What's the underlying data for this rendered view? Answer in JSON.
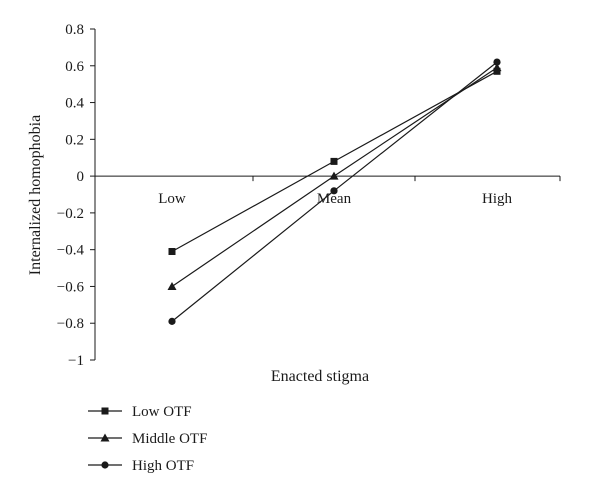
{
  "chart_data": {
    "type": "line",
    "title": "",
    "xlabel": "Enacted stigma",
    "ylabel": "Internalized homophobia",
    "categories": [
      "Low",
      "Mean",
      "High"
    ],
    "ylim": [
      -1,
      0.8
    ],
    "yticks": [
      "0.8",
      "0.6",
      "0.4",
      "0.2",
      "0",
      "−0.2",
      "−0.4",
      "−0.6",
      "−0.8",
      "−1"
    ],
    "ytick_values": [
      0.8,
      0.6,
      0.4,
      0.2,
      0,
      -0.2,
      -0.4,
      -0.6,
      -0.8,
      -1
    ],
    "grid": false,
    "legend_position": "bottom-left",
    "series": [
      {
        "name": "Low OTF",
        "marker": "square",
        "values": [
          -0.41,
          0.08,
          0.57
        ]
      },
      {
        "name": "Middle OTF",
        "marker": "triangle",
        "values": [
          -0.6,
          0.0,
          0.59
        ]
      },
      {
        "name": "High OTF",
        "marker": "circle",
        "values": [
          -0.79,
          -0.08,
          0.62
        ]
      }
    ],
    "colors": {
      "line": "#1a1a1a",
      "axis": "#1a1a1a"
    }
  }
}
